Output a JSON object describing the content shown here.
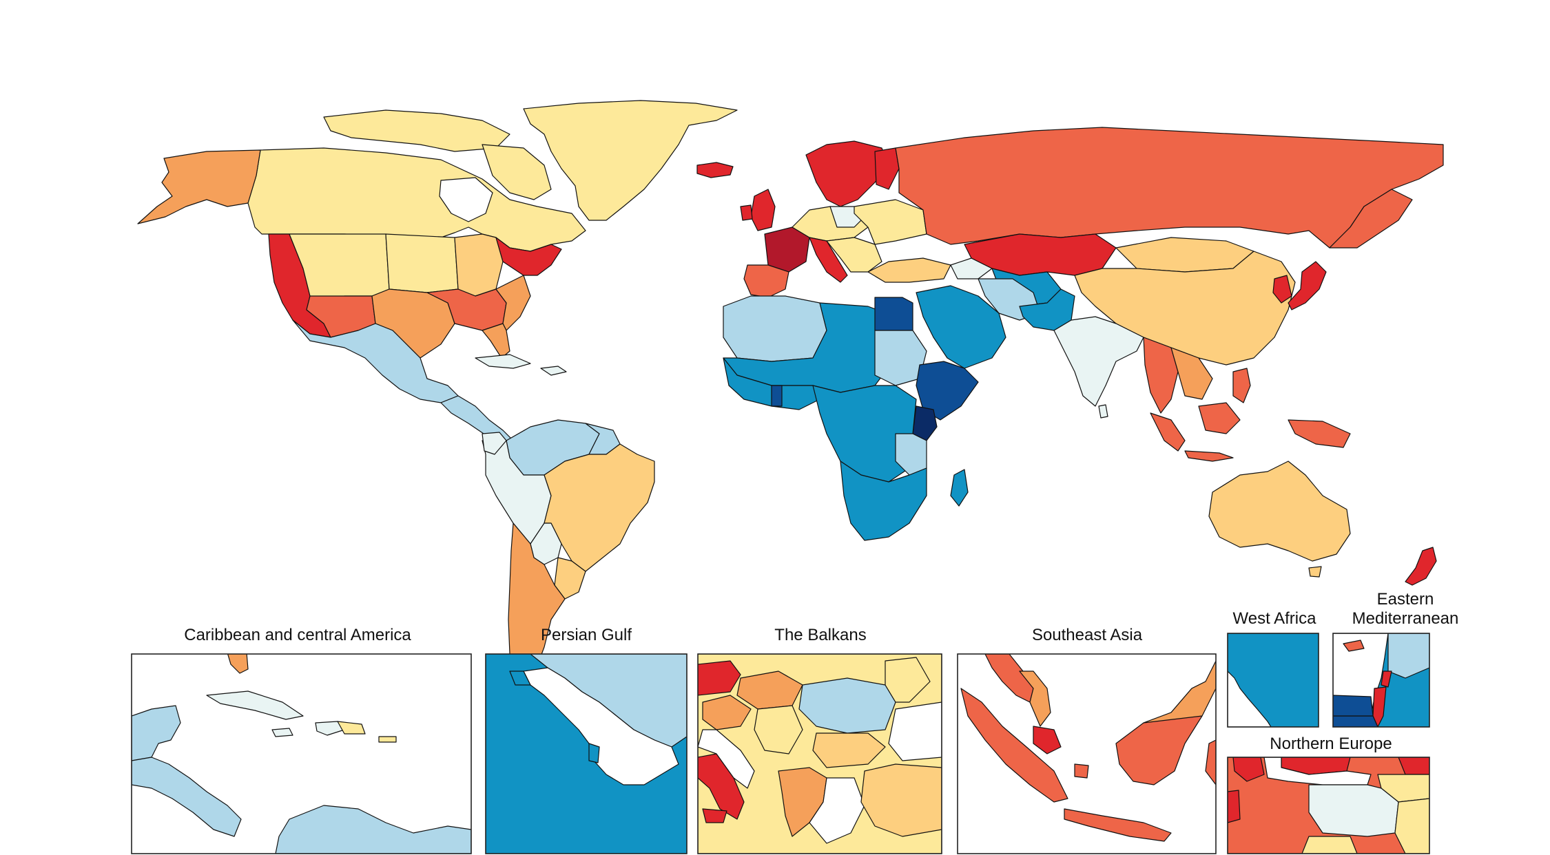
{
  "palette": {
    "very_high": "#b2182b",
    "high": "#e0262c",
    "mid_high": "#ee6548",
    "upper_mid": "#f5a05a",
    "mid": "#fdcf7f",
    "lower_mid": "#fde99a",
    "neutral": "#e9f4f3",
    "low": "#afd7e9",
    "lower": "#1193c4",
    "very_low": "#0e4e95",
    "lowest": "#0b2b66"
  },
  "insets": [
    {
      "id": "caribbean",
      "title": "Caribbean and central America"
    },
    {
      "id": "persian-gulf",
      "title": "Persian Gulf"
    },
    {
      "id": "balkans",
      "title": "The Balkans"
    },
    {
      "id": "southeast-asia",
      "title": "Southeast Asia"
    },
    {
      "id": "west-africa",
      "title": "West Africa"
    },
    {
      "id": "eastern-med",
      "title_line1": "Eastern",
      "title_line2": "Mediterranean"
    },
    {
      "id": "northern-europe",
      "title": "Northern Europe"
    }
  ]
}
